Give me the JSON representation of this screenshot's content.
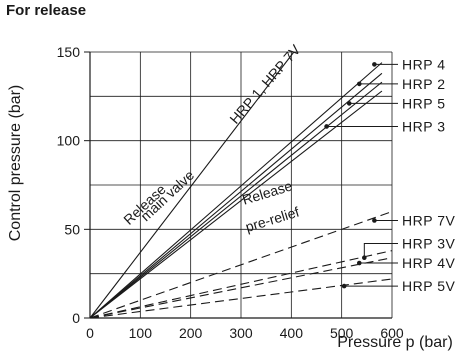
{
  "chart_data": {
    "type": "line",
    "title": "For release",
    "xlabel": "Pressure p (bar)",
    "ylabel": "Control pressure (bar)",
    "xlim": [
      0,
      600
    ],
    "ylim": [
      0,
      150
    ],
    "xticks": [
      "0",
      "100",
      "200",
      "300",
      "400",
      "500",
      "600"
    ],
    "yticks": [
      "0",
      "50",
      "100",
      "150"
    ],
    "grid": true,
    "series": [
      {
        "name": "HRP 1, HRP 7V",
        "style": "solid",
        "x": [
          0,
          405
        ],
        "y": [
          0,
          150
        ]
      },
      {
        "name": "HRP 4",
        "style": "solid",
        "x": [
          0,
          580
        ],
        "y": [
          0,
          144
        ]
      },
      {
        "name": "HRP 2",
        "style": "solid",
        "x": [
          0,
          580
        ],
        "y": [
          0,
          138
        ]
      },
      {
        "name": "HRP 5",
        "style": "solid",
        "x": [
          0,
          580
        ],
        "y": [
          0,
          133
        ]
      },
      {
        "name": "HRP 3",
        "style": "solid",
        "x": [
          0,
          580
        ],
        "y": [
          0,
          128
        ]
      },
      {
        "name": "HRP 7V",
        "style": "dashed",
        "x": [
          0,
          600
        ],
        "y": [
          0,
          60
        ]
      },
      {
        "name": "HRP 3V",
        "style": "dashed",
        "x": [
          0,
          600
        ],
        "y": [
          0,
          38
        ]
      },
      {
        "name": "HRP 4V",
        "style": "dashed",
        "x": [
          0,
          600
        ],
        "y": [
          0,
          34
        ]
      },
      {
        "name": "HRP 5V",
        "style": "dashed",
        "x": [
          0,
          600
        ],
        "y": [
          0,
          22
        ]
      }
    ],
    "callouts": [
      {
        "label": "HRP 4",
        "point": [
          565,
          143
        ],
        "label_y": 143
      },
      {
        "label": "HRP 2",
        "point": [
          535,
          132
        ],
        "label_y": 132
      },
      {
        "label": "HRP 5",
        "point": [
          515,
          121
        ],
        "label_y": 121
      },
      {
        "label": "HRP 3",
        "point": [
          470,
          108
        ],
        "label_y": 108
      },
      {
        "label": "HRP 7V",
        "point": [
          565,
          55
        ],
        "label_y": 55
      },
      {
        "label": "HRP 3V",
        "point": [
          545,
          34
        ],
        "label_y": 42
      },
      {
        "label": "HRP 4V",
        "point": [
          535,
          31
        ],
        "label_y": 31
      },
      {
        "label": "HRP 5V",
        "point": [
          505,
          18
        ],
        "label_y": 18
      }
    ],
    "annotations": [
      {
        "text": "HRP 1, HRP 7V",
        "anchor": [
          355,
          130
        ],
        "rotate": -49
      },
      {
        "text": "Release",
        "anchor": [
          115,
          62
        ],
        "rotate": -43
      },
      {
        "text": "main valve",
        "anchor": [
          160,
          67
        ],
        "rotate": -43
      },
      {
        "text": "Release",
        "anchor": [
          355,
          68
        ],
        "rotate": -17
      },
      {
        "text": "pre-relief",
        "anchor": [
          365,
          53
        ],
        "rotate": -17
      }
    ]
  }
}
